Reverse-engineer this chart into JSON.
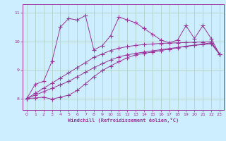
{
  "xlabel": "Windchill (Refroidissement éolien,°C)",
  "background_color": "#cceeff",
  "grid_color": "#aaccbb",
  "line_color": "#993399",
  "xlim": [
    -0.5,
    23.5
  ],
  "ylim": [
    7.6,
    11.3
  ],
  "yticks": [
    8,
    9,
    10,
    11
  ],
  "xticks": [
    0,
    1,
    2,
    3,
    4,
    5,
    6,
    7,
    8,
    9,
    10,
    11,
    12,
    13,
    14,
    15,
    16,
    17,
    18,
    19,
    20,
    21,
    22,
    23
  ],
  "series1": [
    8.0,
    8.5,
    8.6,
    9.3,
    10.5,
    10.8,
    10.75,
    10.9,
    9.7,
    9.85,
    10.2,
    10.85,
    10.75,
    10.65,
    10.45,
    10.25,
    10.05,
    9.95,
    10.05,
    10.55,
    10.1,
    10.55,
    10.1,
    9.55
  ],
  "series2": [
    8.0,
    8.18,
    8.36,
    8.54,
    8.72,
    8.9,
    9.08,
    9.26,
    9.44,
    9.56,
    9.68,
    9.76,
    9.82,
    9.86,
    9.89,
    9.91,
    9.93,
    9.94,
    9.95,
    9.96,
    9.97,
    9.98,
    9.99,
    9.55
  ],
  "series3": [
    8.0,
    8.12,
    8.24,
    8.36,
    8.48,
    8.6,
    8.76,
    8.92,
    9.08,
    9.22,
    9.35,
    9.46,
    9.53,
    9.58,
    9.63,
    9.67,
    9.71,
    9.75,
    9.79,
    9.83,
    9.86,
    9.89,
    9.92,
    9.55
  ],
  "series4": [
    8.0,
    8.02,
    8.05,
    7.98,
    8.05,
    8.12,
    8.28,
    8.52,
    8.76,
    8.98,
    9.14,
    9.29,
    9.43,
    9.53,
    9.58,
    9.63,
    9.68,
    9.73,
    9.78,
    9.83,
    9.87,
    9.91,
    9.95,
    9.55
  ]
}
